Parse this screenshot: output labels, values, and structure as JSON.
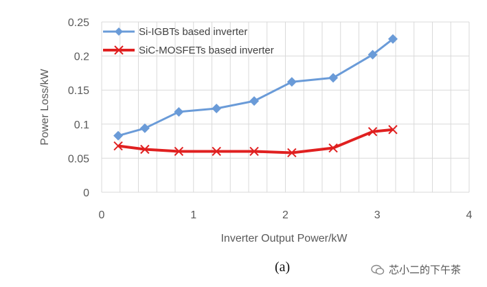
{
  "chart_data": {
    "type": "line",
    "xlabel": "Inverter Output Power/kW",
    "ylabel": "Power Loss/kW",
    "xlim": [
      0,
      4
    ],
    "ylim": [
      0,
      0.25
    ],
    "xticks": [
      "0",
      "1",
      "2",
      "3",
      "4"
    ],
    "yticks": [
      "0",
      "0.05",
      "0.1",
      "0.15",
      "0.2",
      "0.25"
    ],
    "grid": true,
    "legend_position": "top-left",
    "series": [
      {
        "name": "Si-IGBTs based inverter",
        "color": "#6a9bd8",
        "marker": "diamond",
        "x": [
          0.18,
          0.47,
          0.84,
          1.25,
          1.66,
          2.07,
          2.52,
          2.95,
          3.17
        ],
        "y": [
          0.083,
          0.094,
          0.118,
          0.123,
          0.134,
          0.162,
          0.168,
          0.202,
          0.225
        ]
      },
      {
        "name": "SiC-MOSFETs based inverter",
        "color": "#e02020",
        "marker": "x",
        "x": [
          0.18,
          0.47,
          0.84,
          1.25,
          1.66,
          2.07,
          2.52,
          2.95,
          3.17
        ],
        "y": [
          0.068,
          0.063,
          0.06,
          0.06,
          0.06,
          0.058,
          0.065,
          0.089,
          0.092
        ]
      }
    ]
  },
  "caption": "(a)",
  "watermark": "芯小二的下午茶"
}
